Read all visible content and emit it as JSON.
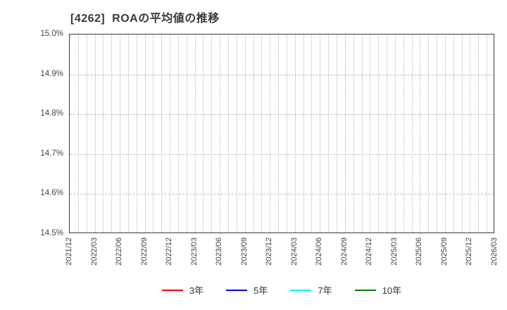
{
  "chart_data": {
    "type": "line",
    "title": "[4262]  ROAの平均値の推移",
    "x_tick_labels": [
      "2021/12",
      "2022/03",
      "2022/06",
      "2022/09",
      "2022/12",
      "2023/03",
      "2023/06",
      "2023/09",
      "2023/12",
      "2024/03",
      "2024/06",
      "2024/09",
      "2024/12",
      "2025/03",
      "2025/06",
      "2025/09",
      "2025/12",
      "2026/03"
    ],
    "x_minor_divisions_per_tick": 3,
    "y_tick_labels": [
      "15.0%",
      "14.9%",
      "14.8%",
      "14.7%",
      "14.6%",
      "14.5%"
    ],
    "ylim": [
      14.5,
      15.0
    ],
    "y_tick_step": 0.1,
    "grid": true,
    "legend_position": "bottom",
    "series": [
      {
        "name": "3年",
        "color": "#ff0000",
        "values": []
      },
      {
        "name": "5年",
        "color": "#0000ff",
        "values": []
      },
      {
        "name": "7年",
        "color": "#00ffff",
        "values": []
      },
      {
        "name": "10年",
        "color": "#008000",
        "values": []
      }
    ],
    "colors": {
      "title_text": "#3a3a3a",
      "axis_frame": "#3c3c3c",
      "tick_text": "#444444",
      "gridline": "#b5b5b5",
      "background": "#ffffff"
    }
  }
}
